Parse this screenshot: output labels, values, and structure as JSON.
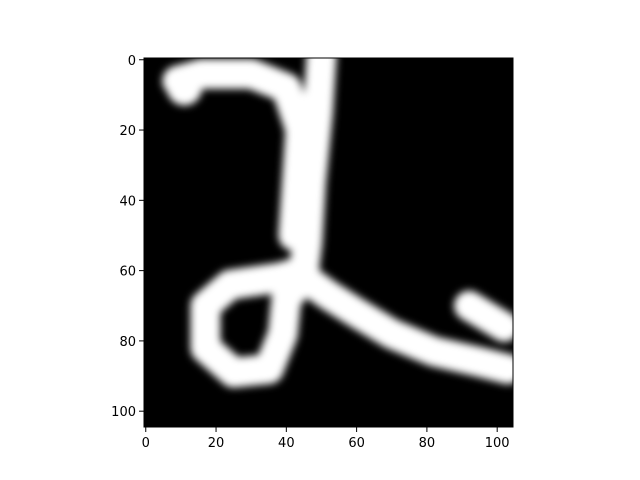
{
  "chart_data": {
    "type": "heatmap",
    "title": "",
    "xlabel": "",
    "ylabel": "",
    "xlim": [
      -0.5,
      104.5
    ],
    "ylim": [
      104.5,
      -0.5
    ],
    "y_inverted": true,
    "colormap": "gray",
    "grid": false,
    "xticks": [
      0,
      20,
      40,
      60,
      80,
      100
    ],
    "yticks": [
      0,
      20,
      40,
      60,
      80,
      100
    ],
    "xtick_labels": [
      "0",
      "20",
      "40",
      "60",
      "80",
      "100"
    ],
    "ytick_labels": [
      "0",
      "20",
      "40",
      "60",
      "80",
      "100"
    ],
    "background_value": 0,
    "stroke_value": 1,
    "image_size": [
      105,
      105
    ],
    "strokes": [
      {
        "name": "top-hook",
        "points": [
          [
            9,
            6
          ],
          [
            16,
            4
          ],
          [
            30,
            4
          ],
          [
            40,
            8
          ],
          [
            44,
            20
          ],
          [
            43,
            35
          ],
          [
            42,
            50
          ]
        ]
      },
      {
        "name": "vertical",
        "points": [
          [
            50,
            -1
          ],
          [
            49,
            15
          ],
          [
            47,
            35
          ],
          [
            46,
            52
          ],
          [
            45,
            60
          ]
        ]
      },
      {
        "name": "loop",
        "points": [
          [
            45,
            60
          ],
          [
            38,
            62
          ],
          [
            24,
            64
          ],
          [
            17,
            70
          ],
          [
            17,
            82
          ],
          [
            25,
            89
          ],
          [
            35,
            88
          ],
          [
            39,
            78
          ],
          [
            40,
            68
          ],
          [
            45,
            62
          ]
        ]
      },
      {
        "name": "sweep",
        "points": [
          [
            45,
            62
          ],
          [
            52,
            67
          ],
          [
            60,
            72
          ],
          [
            70,
            78
          ],
          [
            82,
            83
          ],
          [
            95,
            86
          ],
          [
            103,
            88
          ]
        ]
      },
      {
        "name": "tail",
        "points": [
          [
            92,
            70
          ],
          [
            97,
            73
          ],
          [
            102,
            76
          ]
        ]
      }
    ],
    "blobs": [
      {
        "name": "top-left-knob",
        "cx": 11,
        "cy": 8,
        "r": 5
      }
    ]
  }
}
